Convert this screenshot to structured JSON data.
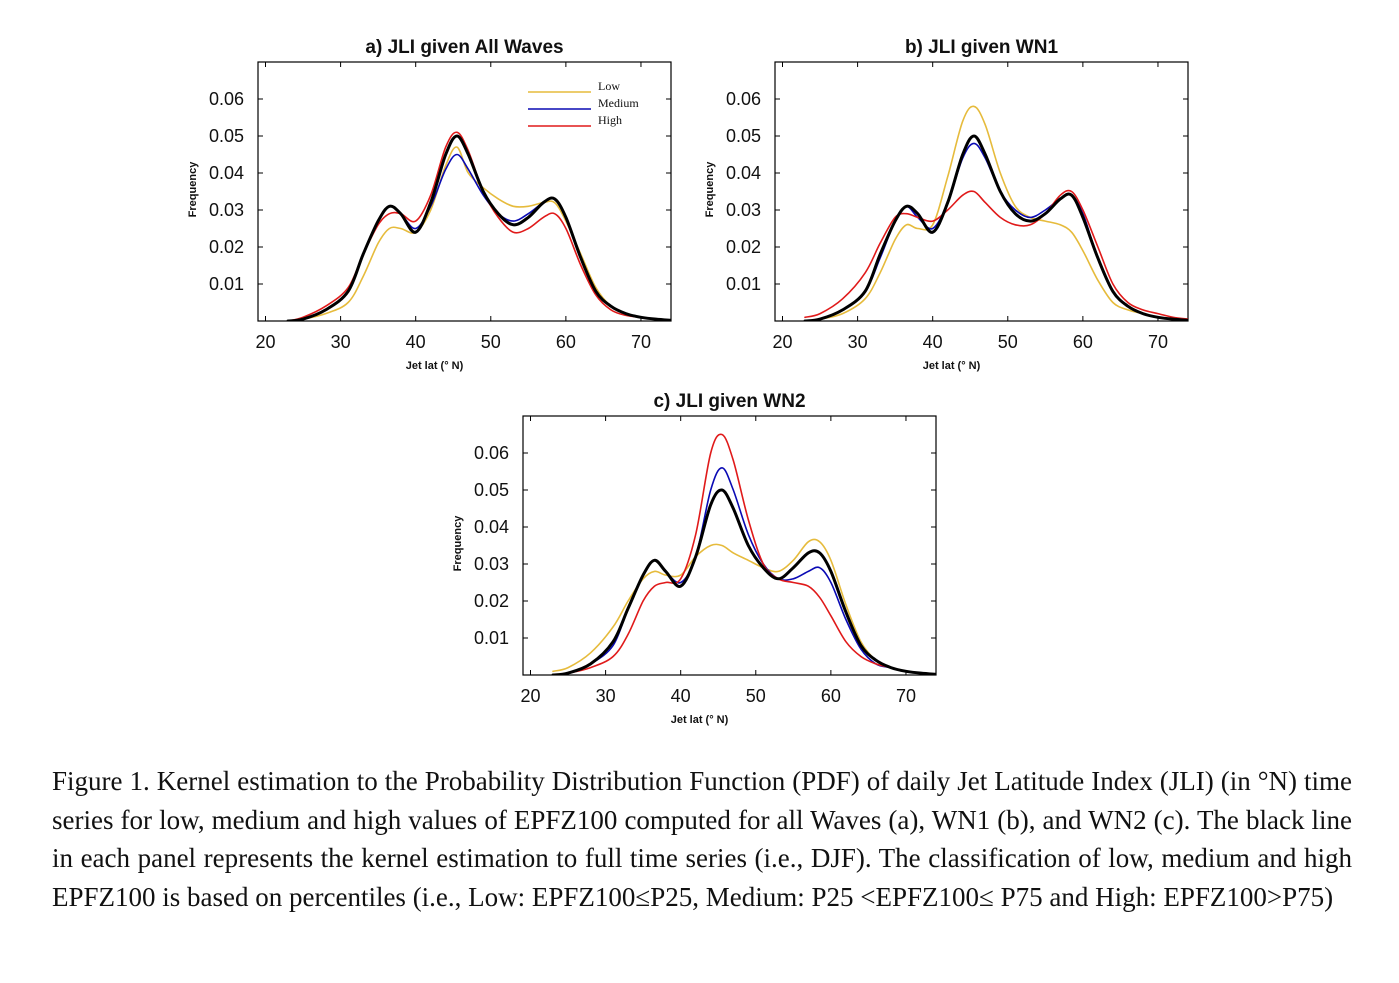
{
  "caption": "Figure 1. Kernel estimation to the Probability Distribution Function (PDF) of daily Jet Latitude Index (JLI) (in °N) time series for low, medium and high values of EPFZ100 computed for all Waves (a), WN1 (b), and WN2 (c). The black line in each panel represents the kernel estimation to full time series (i.e., DJF). The classification of low, medium and high EPFZ100 is based on percentiles (i.e., Low: EPFZ100≤P25, Medium: P25 <EPFZ100≤ P75 and High: EPFZ100>P75)",
  "legend": {
    "placement": "top-right (panel a only)",
    "entries": [
      {
        "name": "Low",
        "color": "#e6bb3c"
      },
      {
        "name": "Medium",
        "color": "#0a0ab4"
      },
      {
        "name": "High",
        "color": "#e01a1a"
      }
    ]
  },
  "series_colors": {
    "Low": "#e6bb3c",
    "Medium": "#0a0ab4",
    "High": "#e01a1a",
    "DJF": "#000000"
  },
  "chart_data": [
    {
      "type": "line",
      "title": "a) JLI given All Waves",
      "xlabel": "Jet lat  (° N)",
      "ylabel": "Frequency",
      "xlim": [
        19,
        74
      ],
      "ylim": [
        0,
        0.07
      ],
      "xticks": [
        20,
        30,
        40,
        50,
        60,
        70
      ],
      "yticks": [
        0.01,
        0.02,
        0.03,
        0.04,
        0.05,
        0.06
      ],
      "ytick_labels": [
        "0.01",
        "0.02",
        "0.03",
        "0.04",
        "0.05",
        "0.06"
      ],
      "grid": false,
      "has_legend": true,
      "x": [
        23,
        25,
        28,
        31,
        33,
        35,
        36.5,
        38,
        40,
        42,
        44,
        45.5,
        47,
        49,
        51,
        53,
        55,
        57,
        58.5,
        60,
        62,
        64,
        66,
        68,
        70,
        72,
        74
      ],
      "series": [
        {
          "name": "Low",
          "values": [
            0,
            0.0005,
            0.002,
            0.005,
            0.012,
            0.021,
            0.025,
            0.025,
            0.024,
            0.03,
            0.042,
            0.047,
            0.04,
            0.036,
            0.033,
            0.031,
            0.031,
            0.032,
            0.032,
            0.027,
            0.018,
            0.009,
            0.004,
            0.002,
            0.001,
            0.0005,
            0.0002
          ]
        },
        {
          "name": "Medium",
          "values": [
            0,
            0.0005,
            0.003,
            0.008,
            0.018,
            0.027,
            0.031,
            0.029,
            0.025,
            0.031,
            0.041,
            0.045,
            0.041,
            0.034,
            0.029,
            0.027,
            0.029,
            0.032,
            0.033,
            0.028,
            0.017,
            0.008,
            0.004,
            0.002,
            0.001,
            0.0005,
            0.0002
          ]
        },
        {
          "name": "High",
          "values": [
            0,
            0.001,
            0.004,
            0.009,
            0.018,
            0.026,
            0.029,
            0.029,
            0.027,
            0.034,
            0.047,
            0.051,
            0.046,
            0.035,
            0.028,
            0.024,
            0.025,
            0.028,
            0.029,
            0.025,
            0.015,
            0.007,
            0.003,
            0.0015,
            0.001,
            0.0005,
            0.0002
          ]
        },
        {
          "name": "DJF",
          "values": [
            0,
            0.0005,
            0.003,
            0.008,
            0.018,
            0.027,
            0.031,
            0.029,
            0.024,
            0.032,
            0.045,
            0.05,
            0.045,
            0.035,
            0.029,
            0.026,
            0.028,
            0.032,
            0.033,
            0.028,
            0.017,
            0.008,
            0.004,
            0.002,
            0.001,
            0.0005,
            0.0002
          ]
        }
      ]
    },
    {
      "type": "line",
      "title": "b) JLI given WN1",
      "xlabel": "Jet lat  (° N)",
      "ylabel": "Frequency",
      "xlim": [
        19,
        74
      ],
      "ylim": [
        0,
        0.07
      ],
      "xticks": [
        20,
        30,
        40,
        50,
        60,
        70
      ],
      "yticks": [
        0.01,
        0.02,
        0.03,
        0.04,
        0.05,
        0.06
      ],
      "ytick_labels": [
        "0.01",
        "0.02",
        "0.03",
        "0.04",
        "0.05",
        "0.06"
      ],
      "grid": false,
      "has_legend": false,
      "x": [
        23,
        25,
        28,
        31,
        33,
        35,
        36.5,
        38,
        40,
        42,
        44,
        45.5,
        47,
        49,
        51,
        53,
        55,
        57,
        58.5,
        60,
        62,
        64,
        66,
        68,
        70,
        72,
        74
      ],
      "series": [
        {
          "name": "Low",
          "values": [
            0,
            0.0005,
            0.002,
            0.006,
            0.013,
            0.022,
            0.026,
            0.025,
            0.026,
            0.039,
            0.054,
            0.058,
            0.053,
            0.04,
            0.031,
            0.028,
            0.027,
            0.026,
            0.024,
            0.019,
            0.011,
            0.005,
            0.003,
            0.002,
            0.001,
            0.0005,
            0.0002
          ]
        },
        {
          "name": "Medium",
          "values": [
            0,
            0.0005,
            0.003,
            0.008,
            0.017,
            0.027,
            0.031,
            0.028,
            0.025,
            0.032,
            0.044,
            0.048,
            0.044,
            0.035,
            0.03,
            0.028,
            0.03,
            0.033,
            0.034,
            0.029,
            0.017,
            0.008,
            0.004,
            0.002,
            0.001,
            0.0005,
            0.0002
          ]
        },
        {
          "name": "High",
          "values": [
            0.001,
            0.002,
            0.006,
            0.013,
            0.021,
            0.028,
            0.029,
            0.028,
            0.027,
            0.03,
            0.034,
            0.035,
            0.032,
            0.028,
            0.026,
            0.026,
            0.029,
            0.034,
            0.035,
            0.03,
            0.02,
            0.01,
            0.005,
            0.003,
            0.002,
            0.001,
            0.0005
          ]
        },
        {
          "name": "DJF",
          "values": [
            0,
            0.0005,
            0.003,
            0.008,
            0.018,
            0.027,
            0.031,
            0.029,
            0.024,
            0.032,
            0.045,
            0.05,
            0.045,
            0.035,
            0.029,
            0.027,
            0.029,
            0.033,
            0.034,
            0.028,
            0.017,
            0.008,
            0.004,
            0.002,
            0.001,
            0.0005,
            0.0002
          ]
        }
      ]
    },
    {
      "type": "line",
      "title": "c) JLI given WN2",
      "xlabel": "Jet lat  (° N)",
      "ylabel": "Frequency",
      "xlim": [
        19,
        74
      ],
      "ylim": [
        0,
        0.07
      ],
      "xticks": [
        20,
        30,
        40,
        50,
        60,
        70
      ],
      "yticks": [
        0.01,
        0.02,
        0.03,
        0.04,
        0.05,
        0.06
      ],
      "ytick_labels": [
        "0.01",
        "0.02",
        "0.03",
        "0.04",
        "0.05",
        "0.06"
      ],
      "grid": false,
      "has_legend": false,
      "x": [
        23,
        25,
        28,
        31,
        33,
        35,
        36.5,
        38,
        40,
        42,
        44,
        45.5,
        47,
        49,
        51,
        53,
        55,
        57,
        58.5,
        60,
        62,
        64,
        66,
        68,
        70,
        72,
        74
      ],
      "series": [
        {
          "name": "Low",
          "values": [
            0.001,
            0.002,
            0.006,
            0.013,
            0.02,
            0.026,
            0.028,
            0.027,
            0.027,
            0.032,
            0.035,
            0.035,
            0.033,
            0.031,
            0.029,
            0.028,
            0.031,
            0.036,
            0.036,
            0.031,
            0.019,
            0.009,
            0.004,
            0.002,
            0.001,
            0.0005,
            0.0002
          ]
        },
        {
          "name": "Medium",
          "values": [
            0,
            0.0005,
            0.003,
            0.008,
            0.018,
            0.027,
            0.031,
            0.028,
            0.025,
            0.032,
            0.05,
            0.056,
            0.05,
            0.038,
            0.03,
            0.026,
            0.026,
            0.028,
            0.029,
            0.025,
            0.015,
            0.007,
            0.003,
            0.002,
            0.001,
            0.0005,
            0.0002
          ]
        },
        {
          "name": "High",
          "values": [
            0,
            0.0005,
            0.002,
            0.005,
            0.011,
            0.02,
            0.024,
            0.025,
            0.026,
            0.038,
            0.06,
            0.065,
            0.058,
            0.042,
            0.03,
            0.026,
            0.025,
            0.024,
            0.021,
            0.016,
            0.009,
            0.005,
            0.003,
            0.002,
            0.001,
            0.0005,
            0.0002
          ]
        },
        {
          "name": "DJF",
          "values": [
            0,
            0.0005,
            0.003,
            0.009,
            0.018,
            0.027,
            0.031,
            0.028,
            0.024,
            0.032,
            0.046,
            0.05,
            0.045,
            0.035,
            0.029,
            0.026,
            0.029,
            0.033,
            0.033,
            0.028,
            0.017,
            0.008,
            0.004,
            0.002,
            0.001,
            0.0005,
            0.0002
          ]
        }
      ]
    }
  ]
}
